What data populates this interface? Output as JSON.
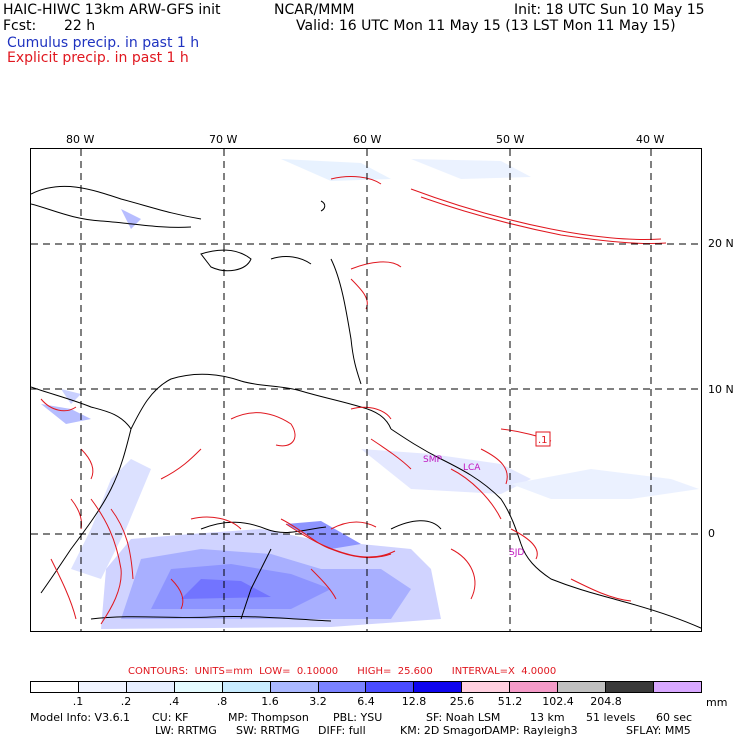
{
  "header": {
    "model_title": "HAIC-HIWC 13km ARW-GFS init",
    "org": "NCAR/MMM",
    "init": "Init: 18 UTC Sun 10 May 15",
    "fcst_label": "Fcst:",
    "fcst_value": "22 h",
    "valid": "Valid: 16 UTC Mon 11 May 15 (13 LST Mon 11 May 15)",
    "cumulus": "Cumulus precip. in past 1 h",
    "explicit": "Explicit precip. in past 1 h"
  },
  "map": {
    "lon_labels": [
      "80 W",
      "70 W",
      "60 W",
      "50 W",
      "40 W"
    ],
    "lat_labels": [
      "20 N",
      "10 N",
      "0"
    ],
    "station_labels": [
      "SMP",
      "LCA",
      "SJD"
    ],
    "contour_label": ".1"
  },
  "contours_line": {
    "label": "CONTOURS:",
    "units": "UNITS=mm",
    "low": "LOW=  0.10000",
    "high": "HIGH=  25.600",
    "interval": "INTERVAL=X  4.0000"
  },
  "colorbar": {
    "labels": [
      ".1",
      ".2",
      ".4",
      ".8",
      "1.6",
      "3.2",
      "6.4",
      "12.8",
      "25.6",
      "51.2",
      "102.4",
      "204.8"
    ],
    "units": "mm",
    "colors": [
      "#ffffff",
      "#f0f4ff",
      "#e6eeff",
      "#e4fbff",
      "#c8ecff",
      "#aab8ff",
      "#7a82ff",
      "#4a4cff",
      "#0e05ee",
      "#ffd0e0",
      "#f49bc8",
      "#c0c0c0",
      "#3a3a3a",
      "#d8a8ff"
    ]
  },
  "model_info": {
    "line1": [
      "Model Info: V3.6.1",
      "CU: KF",
      "MP: Thompson",
      "PBL: YSU",
      "SF: Noah LSM",
      "13 km",
      "51 levels",
      "60 sec"
    ],
    "line2": [
      "LW: RRTMG",
      "SW: RRTMG",
      "DIFF: full",
      "KM: 2D Smagor",
      "DAMP: Rayleigh3",
      "SFLAY: MM5"
    ]
  }
}
